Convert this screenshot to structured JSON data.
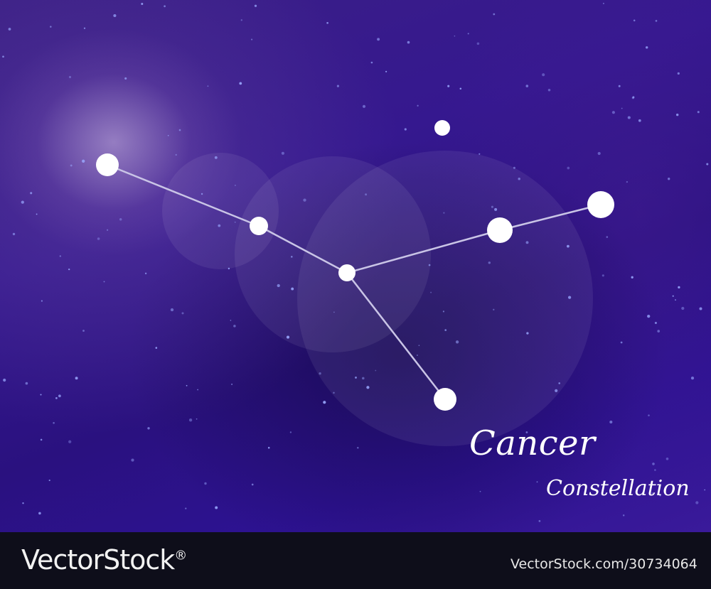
{
  "title": {
    "main": "Cancer",
    "sub": "Constellation"
  },
  "footer": {
    "brand": "VectorStock",
    "registered_mark": "®",
    "stock_id": "VectorStock.com/30734064"
  },
  "colors": {
    "sky_top": "#3b1f86",
    "sky_bottom": "#3a1a9a",
    "star": "#ffffff",
    "line": "#c9c4e6",
    "footer_bg": "#0e0e1a"
  }
}
